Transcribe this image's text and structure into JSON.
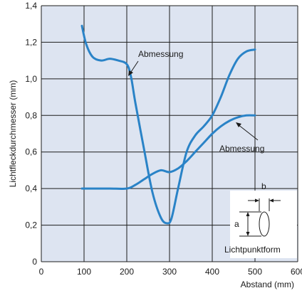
{
  "chart_data": {
    "type": "line",
    "title": "",
    "xlabel": "Abstand (mm)",
    "ylabel": "Lichtfleckdurchmesser (mm)",
    "xlim": [
      0,
      600
    ],
    "ylim": [
      0,
      1.4
    ],
    "x_ticks": [
      "0",
      "100",
      "200",
      "300",
      "400",
      "500",
      "600"
    ],
    "y_ticks": [
      "0",
      "0,2",
      "0,4",
      "0,6",
      "0,8",
      "1,0",
      "1,2",
      "1,4"
    ],
    "grid": true,
    "series": [
      {
        "name": "Abmessung",
        "x": [
          95,
          105,
          120,
          140,
          160,
          180,
          200,
          210,
          220,
          240,
          260,
          280,
          295,
          305,
          320,
          340,
          360,
          380,
          400,
          420,
          440,
          460,
          480,
          500
        ],
        "y": [
          1.29,
          1.19,
          1.12,
          1.1,
          1.11,
          1.1,
          1.08,
          1.01,
          0.87,
          0.62,
          0.38,
          0.24,
          0.21,
          0.24,
          0.4,
          0.6,
          0.69,
          0.74,
          0.8,
          0.9,
          1.02,
          1.11,
          1.15,
          1.16
        ]
      },
      {
        "name": "Abmessung",
        "x": [
          95,
          120,
          160,
          200,
          220,
          240,
          260,
          280,
          300,
          320,
          340,
          360,
          380,
          400,
          420,
          440,
          460,
          480,
          500
        ],
        "y": [
          0.4,
          0.4,
          0.4,
          0.4,
          0.42,
          0.45,
          0.48,
          0.5,
          0.49,
          0.51,
          0.55,
          0.6,
          0.65,
          0.7,
          0.74,
          0.77,
          0.79,
          0.8,
          0.8
        ]
      }
    ],
    "annotations": [
      {
        "text": "Abmessung",
        "points_to": [
          209,
          1.02
        ]
      },
      {
        "text": "Abmessung",
        "points_to": [
          440,
          0.76
        ]
      }
    ],
    "inset": {
      "label_a": "a",
      "label_b": "b",
      "caption": "Lichtpunktform"
    }
  },
  "colors": {
    "plot_bg": "#dde4f1",
    "grid": "#1c1c1c",
    "curve": "#2a83c7"
  }
}
